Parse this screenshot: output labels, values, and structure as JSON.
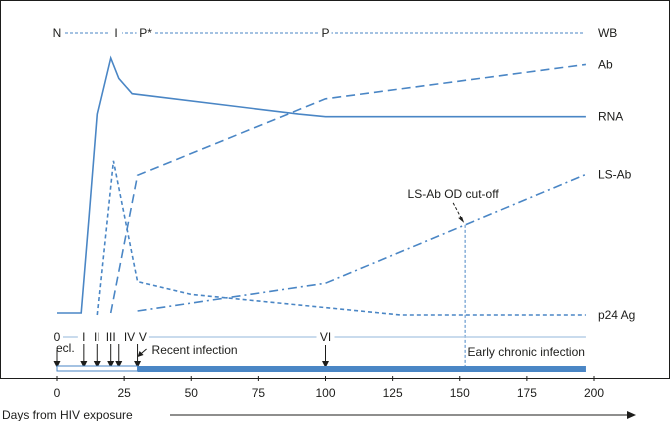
{
  "chart_data": {
    "type": "line",
    "title": "",
    "xlabel": "Days from HIV exposure",
    "ylabel": "",
    "xlim": [
      0,
      200
    ],
    "x_ticks": [
      0,
      25,
      50,
      75,
      100,
      125,
      150,
      175,
      200
    ],
    "colors": {
      "line": "#4a86c5",
      "text": "#1d1d1b"
    },
    "series": [
      {
        "name": "Ab",
        "style": "dashed",
        "points": [
          [
            20,
            0.0
          ],
          [
            30,
            0.54
          ],
          [
            100,
            0.84
          ],
          [
            197,
            0.975
          ]
        ]
      },
      {
        "name": "RNA",
        "style": "solid",
        "points": [
          [
            0,
            0.0
          ],
          [
            9,
            0.0
          ],
          [
            12,
            0.38
          ],
          [
            15,
            0.78
          ],
          [
            20,
            1.0
          ],
          [
            23,
            0.92
          ],
          [
            28,
            0.86
          ],
          [
            90,
            0.78
          ],
          [
            100,
            0.77
          ],
          [
            197,
            0.77
          ]
        ]
      },
      {
        "name": "LS-Ab",
        "style": "dash-dot",
        "points": [
          [
            30,
            0.0
          ],
          [
            100,
            0.11
          ],
          [
            197,
            0.54
          ]
        ]
      },
      {
        "name": "p24 Ag",
        "style": "short-dashed",
        "points": [
          [
            15,
            0.0
          ],
          [
            21,
            0.6
          ],
          [
            30,
            0.13
          ],
          [
            50,
            0.08
          ],
          [
            128,
            0.0
          ],
          [
            197,
            0.0
          ]
        ]
      }
    ],
    "cutoff": {
      "label": "LS-Ab OD cut-off",
      "x": 152
    },
    "wb_band": {
      "label": "WB",
      "markers": [
        {
          "label": "N",
          "x": 0
        },
        {
          "label": "I",
          "x": 22
        },
        {
          "label": "P*",
          "x": 33
        },
        {
          "label": "P",
          "x": 100
        }
      ]
    },
    "stages": {
      "labels": [
        {
          "label": "0",
          "x": 0
        },
        {
          "label": "I",
          "x": 10
        },
        {
          "label": "II",
          "x": 15
        },
        {
          "label": "III",
          "x": 20
        },
        {
          "label": "IV",
          "x": 27
        },
        {
          "label": "V",
          "x": 32
        },
        {
          "label": "VI",
          "x": 100
        }
      ],
      "arrows_at": [
        0,
        10,
        15,
        20,
        23,
        30,
        100
      ],
      "eclipse_label": "ecl.",
      "recent_label": "Recent infection",
      "chronic_label": "Early chronic infection",
      "recent_range": [
        0,
        30
      ],
      "chronic_range": [
        30,
        197
      ]
    }
  }
}
